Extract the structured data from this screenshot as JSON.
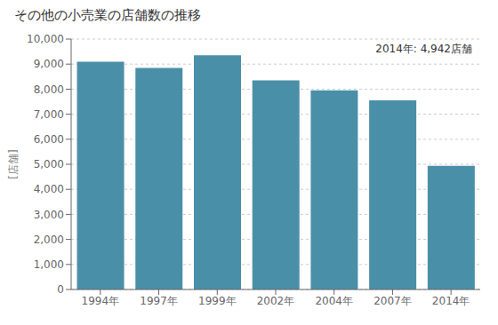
{
  "chart_data": {
    "type": "bar",
    "title": "その他の小売業の店舗数の推移",
    "ylabel": "[店舗]",
    "annotation": "2014年: 4,942店舗",
    "categories": [
      "1994年",
      "1997年",
      "1999年",
      "2002年",
      "2004年",
      "2007年",
      "2014年"
    ],
    "values": [
      9100,
      8850,
      9350,
      8350,
      7950,
      7550,
      4942
    ],
    "color": "#4a8fa8",
    "ylim": [
      0,
      10000
    ],
    "yticks": [
      0,
      {
        "value": 1000,
        "label": "1,000"
      },
      {
        "value": 2000,
        "label": "2,000"
      },
      {
        "value": 3000,
        "label": "3,000"
      },
      {
        "value": 4000,
        "label": "4,000"
      },
      {
        "value": 5000,
        "label": "5,000"
      },
      {
        "value": 6000,
        "label": "6,000"
      },
      {
        "value": 7000,
        "label": "7,000"
      },
      {
        "value": 8000,
        "label": "8,000"
      },
      {
        "value": 9000,
        "label": "9,000"
      },
      {
        "value": 10000,
        "label": "10,000"
      }
    ],
    "grid": true
  }
}
